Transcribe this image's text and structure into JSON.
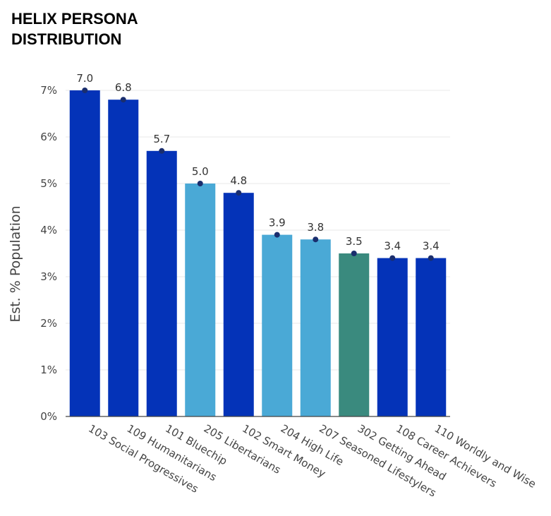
{
  "chart_data": {
    "type": "bar",
    "title": [
      "HELIX PERSONA",
      "DISTRIBUTION"
    ],
    "xlabel": "",
    "ylabel": "Est. % Population",
    "ylim": [
      0,
      7
    ],
    "ytick_values": [
      0,
      1,
      2,
      3,
      4,
      5,
      6,
      7
    ],
    "ytick_labels": [
      "0%",
      "1%",
      "2%",
      "3%",
      "4%",
      "5%",
      "6%",
      "7%"
    ],
    "grid": true,
    "categories": [
      "103 Social Progressives",
      "109 Humanitarians",
      "101 Bluechip",
      "205 Libertarians",
      "102 Smart Money",
      "204 High Life",
      "207 Seasoned Lifestylers",
      "302 Getting Ahead",
      "108 Career Achievers",
      "110 Worldly and Wise"
    ],
    "values": [
      7.0,
      6.8,
      5.7,
      5.0,
      4.8,
      3.9,
      3.8,
      3.5,
      3.4,
      3.4
    ],
    "value_labels": [
      "7.0",
      "6.8",
      "5.7",
      "5.0",
      "4.8",
      "3.9",
      "3.8",
      "3.5",
      "3.4",
      "3.4"
    ],
    "bar_colors": [
      "#0433b8",
      "#0433b8",
      "#0433b8",
      "#4aa9d6",
      "#0433b8",
      "#4aa9d6",
      "#4aa9d6",
      "#3a8a7e",
      "#0433b8",
      "#0433b8"
    ],
    "marker_color": "#1a2e6e",
    "grid_color": "#e8e8e8",
    "axis_color": "#444444"
  }
}
